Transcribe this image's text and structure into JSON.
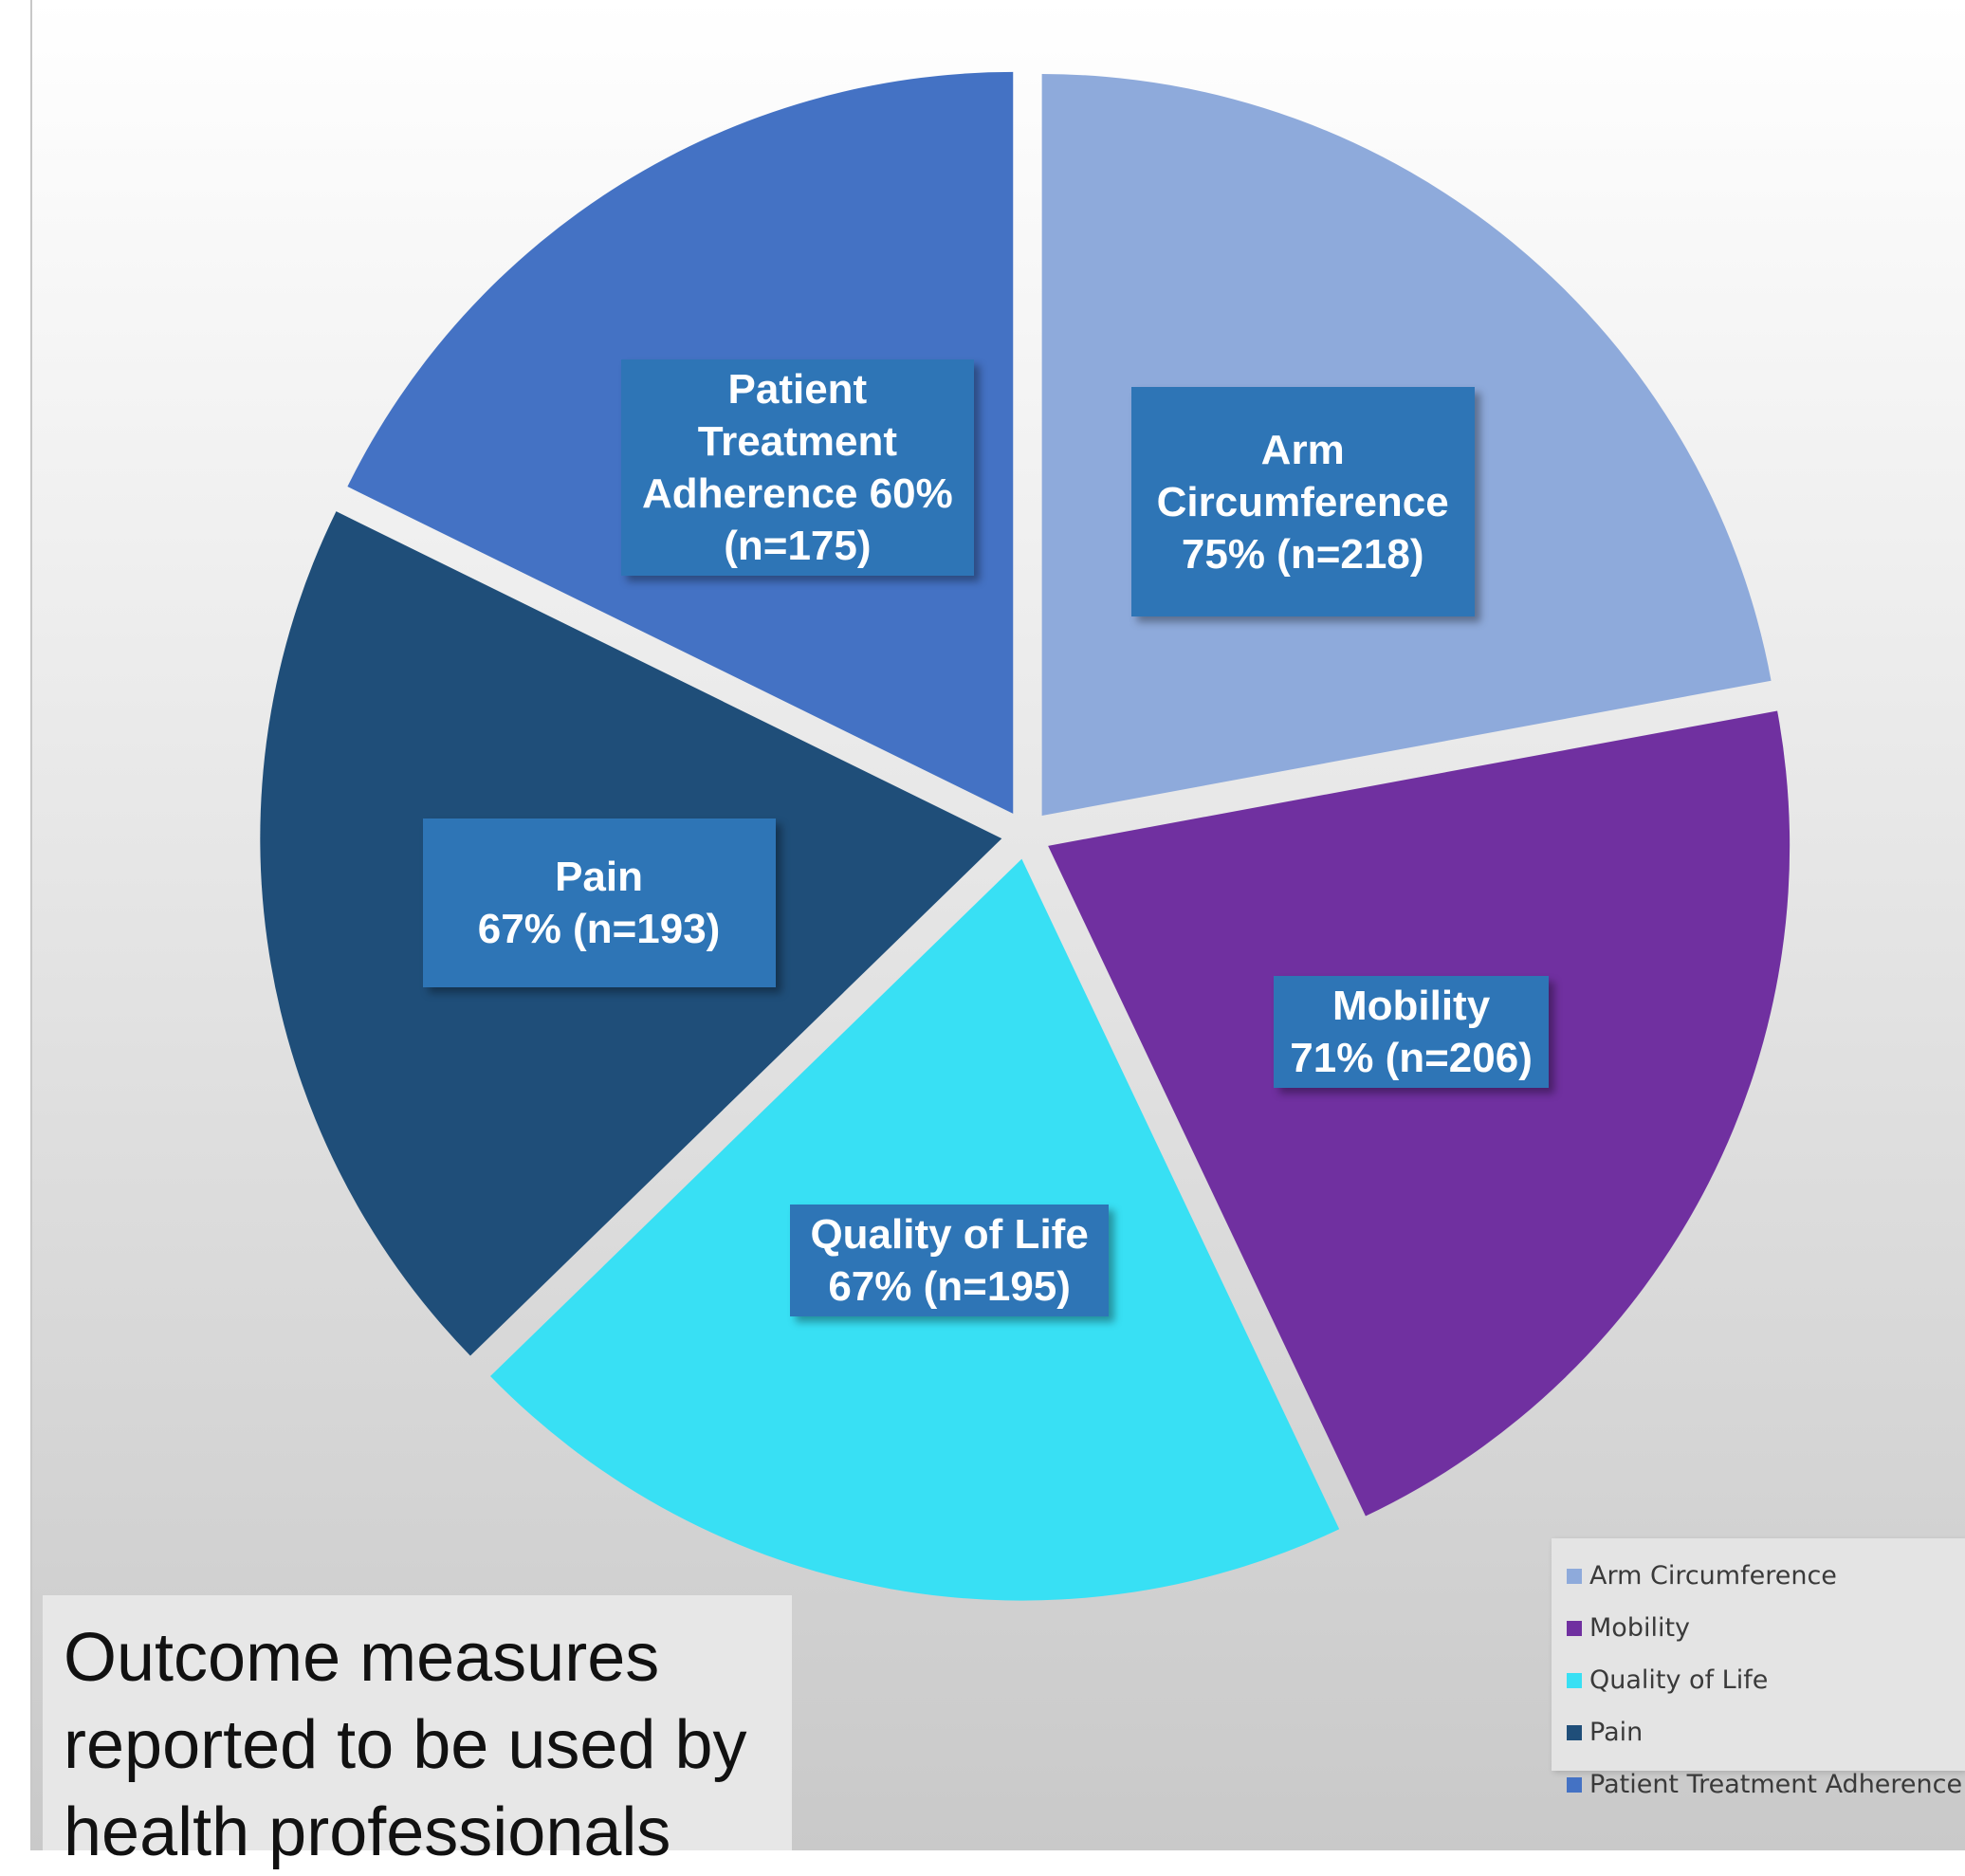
{
  "chart_data": {
    "type": "pie",
    "slices": [
      {
        "name": "Arm Circumference",
        "value": 218,
        "label_lines": [
          "Arm",
          "Circumference",
          "75% (n=218)"
        ],
        "color": "#8eaadb"
      },
      {
        "name": "Mobility",
        "value": 206,
        "label_lines": [
          "Mobility",
          "71% (n=206)"
        ],
        "color": "#7030a0"
      },
      {
        "name": "Quality of Life",
        "value": 195,
        "label_lines": [
          "Quality of Life",
          "67% (n=195)"
        ],
        "color": "#38e0f4"
      },
      {
        "name": "Pain",
        "value": 193,
        "label_lines": [
          "Pain",
          "67% (n=193)"
        ],
        "color": "#1f4e79"
      },
      {
        "name": "Patient Treatment Adherence",
        "value": 175,
        "label_lines": [
          "Patient",
          "Treatment",
          "Adherence 60%",
          "(n=175)"
        ],
        "color": "#4472c4"
      }
    ],
    "legend": [
      "Arm Circumference",
      "Mobility",
      "Quality of Life",
      "Pain",
      "Patient Treatment Adherence"
    ],
    "legend_position": "bottom-right",
    "label_box_color": "#2e75b6"
  },
  "caption": {
    "lines": [
      "Outcome measures",
      "reported to be used by",
      "health professionals"
    ]
  }
}
